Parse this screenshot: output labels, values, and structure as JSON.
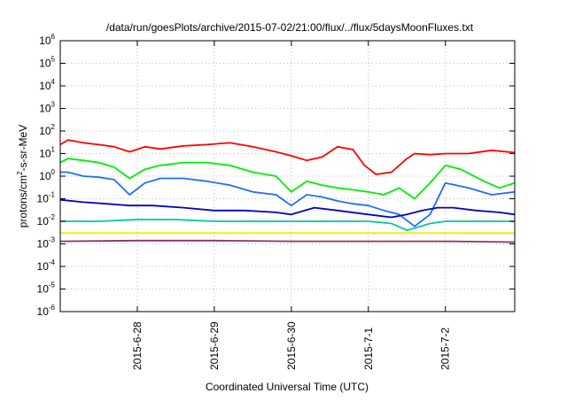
{
  "chart_data": {
    "type": "line",
    "title": "/data/run/goesPlots/archive/2015-07-02/21:00/flux/../flux/5daysMoonFluxes.txt",
    "xlabel": "Coordinated Universal Time (UTC)",
    "ylabel": {
      "pre": "protons/cm",
      "sup": "2",
      "post": "-s-sr-MeV"
    },
    "y_scale": "log",
    "ylim": [
      1e-06,
      1000000.0
    ],
    "xlim_days": [
      0,
      5.9
    ],
    "grid": true,
    "legend": "none",
    "y_ticks": [
      {
        "v": 1e-06,
        "base": "10",
        "exp": "-6"
      },
      {
        "v": 1e-05,
        "base": "10",
        "exp": "-5"
      },
      {
        "v": 0.0001,
        "base": "10",
        "exp": "-4"
      },
      {
        "v": 0.001,
        "base": "10",
        "exp": "-3"
      },
      {
        "v": 0.01,
        "base": "10",
        "exp": "-2"
      },
      {
        "v": 0.1,
        "base": "10",
        "exp": "-1"
      },
      {
        "v": 1,
        "base": "10",
        "exp": "0"
      },
      {
        "v": 10,
        "base": "10",
        "exp": "1"
      },
      {
        "v": 100,
        "base": "10",
        "exp": "2"
      },
      {
        "v": 1000,
        "base": "10",
        "exp": "3"
      },
      {
        "v": 10000,
        "base": "10",
        "exp": "4"
      },
      {
        "v": 100000,
        "base": "10",
        "exp": "5"
      },
      {
        "v": 1000000,
        "base": "10",
        "exp": "6"
      }
    ],
    "x_ticks": [
      {
        "d": 1,
        "label": "2015-6-28"
      },
      {
        "d": 2,
        "label": "2015-6-29"
      },
      {
        "d": 3,
        "label": "2015-6-30"
      },
      {
        "d": 4,
        "label": "2015-7-1"
      },
      {
        "d": 5,
        "label": "2015-7-2"
      }
    ],
    "series": [
      {
        "color": "#ff0000",
        "x": [
          0,
          0.1,
          0.3,
          0.5,
          0.7,
          0.9,
          1.1,
          1.3,
          1.6,
          1.9,
          2.2,
          2.5,
          2.8,
          3.0,
          3.2,
          3.4,
          3.6,
          3.8,
          3.95,
          4.1,
          4.3,
          4.5,
          4.6,
          4.8,
          5.0,
          5.3,
          5.6,
          5.9
        ],
        "y": [
          25,
          40,
          30,
          25,
          20,
          12,
          20,
          16,
          22,
          25,
          30,
          20,
          12,
          8,
          5,
          7,
          20,
          15,
          3,
          1.2,
          1.5,
          6,
          10,
          9,
          10,
          10,
          14,
          11
        ]
      },
      {
        "color": "#00ee00",
        "x": [
          0,
          0.1,
          0.3,
          0.5,
          0.7,
          0.9,
          1.1,
          1.3,
          1.6,
          1.9,
          2.2,
          2.5,
          2.8,
          3.0,
          3.2,
          3.4,
          3.6,
          3.8,
          4.0,
          4.2,
          4.4,
          4.6,
          4.8,
          5.0,
          5.2,
          5.5,
          5.7,
          5.9
        ],
        "y": [
          4,
          6,
          5,
          4,
          2.5,
          0.8,
          2,
          3,
          4,
          4,
          3,
          1.5,
          1,
          0.2,
          0.6,
          0.4,
          0.3,
          0.25,
          0.2,
          0.15,
          0.3,
          0.1,
          0.5,
          3,
          2,
          0.6,
          0.3,
          0.5
        ]
      },
      {
        "color": "#1e6eff",
        "x": [
          0,
          0.1,
          0.3,
          0.5,
          0.7,
          0.9,
          1.1,
          1.3,
          1.6,
          1.9,
          2.2,
          2.5,
          2.8,
          3.0,
          3.2,
          3.4,
          3.6,
          3.8,
          4.0,
          4.2,
          4.4,
          4.6,
          4.8,
          5.0,
          5.3,
          5.6,
          5.9
        ],
        "y": [
          1.5,
          1.5,
          1,
          0.9,
          0.7,
          0.15,
          0.5,
          0.8,
          0.8,
          0.6,
          0.4,
          0.2,
          0.15,
          0.05,
          0.15,
          0.12,
          0.08,
          0.06,
          0.05,
          0.03,
          0.02,
          0.006,
          0.02,
          0.5,
          0.3,
          0.15,
          0.2
        ]
      },
      {
        "color": "#0000cc",
        "x": [
          0,
          0.3,
          0.6,
          0.9,
          1.2,
          1.6,
          2.0,
          2.4,
          2.8,
          3.0,
          3.3,
          3.6,
          4.0,
          4.3,
          4.5,
          4.7,
          4.9,
          5.1,
          5.4,
          5.7,
          5.9
        ],
        "y": [
          0.09,
          0.07,
          0.06,
          0.05,
          0.05,
          0.04,
          0.03,
          0.03,
          0.025,
          0.02,
          0.04,
          0.03,
          0.02,
          0.015,
          0.02,
          0.03,
          0.04,
          0.04,
          0.03,
          0.025,
          0.02
        ]
      },
      {
        "color": "#00c8a0",
        "x": [
          0,
          0.5,
          1.0,
          1.5,
          2.0,
          2.5,
          3.0,
          3.5,
          4.0,
          4.3,
          4.5,
          4.6,
          4.8,
          5.0,
          5.5,
          5.9
        ],
        "y": [
          0.01,
          0.01,
          0.012,
          0.012,
          0.01,
          0.01,
          0.01,
          0.01,
          0.01,
          0.008,
          0.004,
          0.005,
          0.008,
          0.01,
          0.01,
          0.01
        ]
      },
      {
        "color": "#eeee00",
        "x": [
          0,
          1,
          2,
          3,
          4,
          5,
          5.9
        ],
        "y": [
          0.003,
          0.003,
          0.003,
          0.003,
          0.003,
          0.003,
          0.003
        ]
      },
      {
        "color": "#883366",
        "x": [
          0,
          1,
          2,
          3,
          4,
          5,
          5.9
        ],
        "y": [
          0.0013,
          0.0014,
          0.0014,
          0.0013,
          0.0013,
          0.0013,
          0.0012
        ]
      }
    ]
  }
}
